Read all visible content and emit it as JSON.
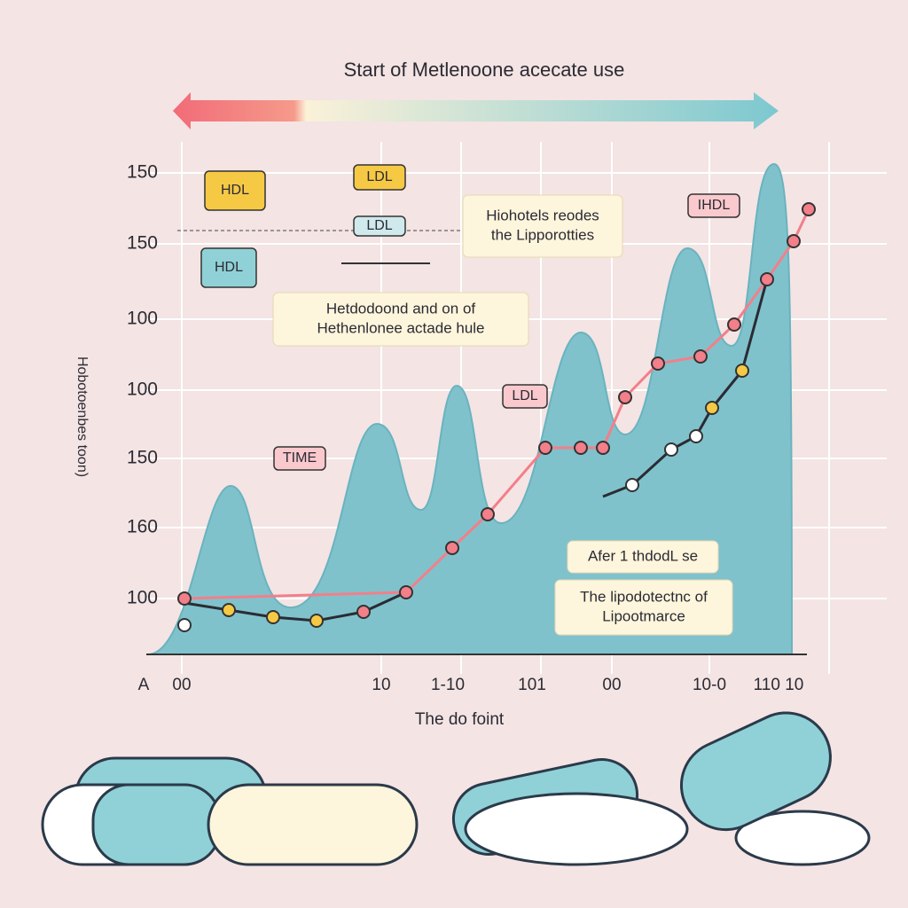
{
  "title": "Start of Metlenoone acecate use",
  "y_axis_label": "Hobotoenbes toon)",
  "y_labels": [
    "150",
    "150",
    "100",
    "100",
    "150",
    "160",
    "100"
  ],
  "x_labels": [
    "A",
    "00",
    "10",
    "1-10",
    "101",
    "00",
    "10-0",
    "110 10"
  ],
  "x_axis_label": "The do foint",
  "tags": [
    "HDL",
    "LDL",
    "HDL",
    "LDL",
    "TIME",
    "LDL",
    "IHDL"
  ],
  "callouts": [
    {
      "lines": [
        "Hiohotels reodes",
        "the Lipporotties"
      ]
    },
    {
      "lines": [
        "Hetdodoond and on of",
        "Hethenlonee actade hule"
      ]
    },
    {
      "lines": [
        "Afer 1 thdodL se"
      ]
    },
    {
      "lines": [
        "The lipodotectnc of",
        "Lipootmarce"
      ]
    }
  ]
}
